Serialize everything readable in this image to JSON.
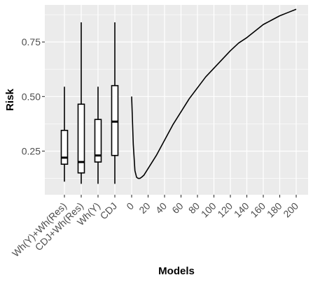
{
  "chart_data": {
    "type": "box+line",
    "xlabel": "Models",
    "ylabel": "Risk",
    "ylim": [
      0.05,
      0.92
    ],
    "yticks": [
      0.25,
      0.5,
      0.75
    ],
    "ytick_labels": [
      "0.25",
      "0.50",
      "0.75"
    ],
    "grid": true,
    "legend": "none",
    "background_color": "#EBEBEB",
    "grid_color": "#FFFFFF",
    "line_color": "#000000",
    "boxes": [
      {
        "label": "Wh(Y)+Wh(Res)",
        "whisker_low": 0.11,
        "q1": 0.19,
        "median": 0.22,
        "q3": 0.345,
        "whisker_high": 0.545
      },
      {
        "label": "CDJ+Wh(Res)",
        "whisker_low": 0.1,
        "q1": 0.15,
        "median": 0.2,
        "q3": 0.465,
        "whisker_high": 0.84
      },
      {
        "label": "Wh(Y)",
        "whisker_low": 0.1,
        "q1": 0.2,
        "median": 0.23,
        "q3": 0.395,
        "whisker_high": 0.545
      },
      {
        "label": "CDJ",
        "whisker_low": 0.1,
        "q1": 0.23,
        "median": 0.385,
        "q3": 0.55,
        "whisker_high": 0.84
      }
    ],
    "series": [
      {
        "x": [
          0,
          2,
          4,
          6,
          8,
          10,
          12,
          15,
          20,
          25,
          30,
          40,
          50,
          60,
          70,
          80,
          90,
          100,
          110,
          120,
          130,
          140,
          150,
          160,
          170,
          180,
          190,
          200
        ],
        "y": [
          0.5,
          0.28,
          0.16,
          0.13,
          0.125,
          0.125,
          0.13,
          0.14,
          0.17,
          0.2,
          0.23,
          0.3,
          0.37,
          0.43,
          0.49,
          0.54,
          0.59,
          0.63,
          0.67,
          0.71,
          0.745,
          0.77,
          0.8,
          0.83,
          0.85,
          0.87,
          0.885,
          0.9
        ]
      }
    ],
    "line_xticks": [
      0,
      20,
      40,
      60,
      80,
      100,
      120,
      140,
      160,
      180,
      200
    ],
    "line_xtick_labels": [
      "0",
      "20",
      "40",
      "60",
      "80",
      "100",
      "120",
      "140",
      "160",
      "180",
      "200"
    ]
  }
}
